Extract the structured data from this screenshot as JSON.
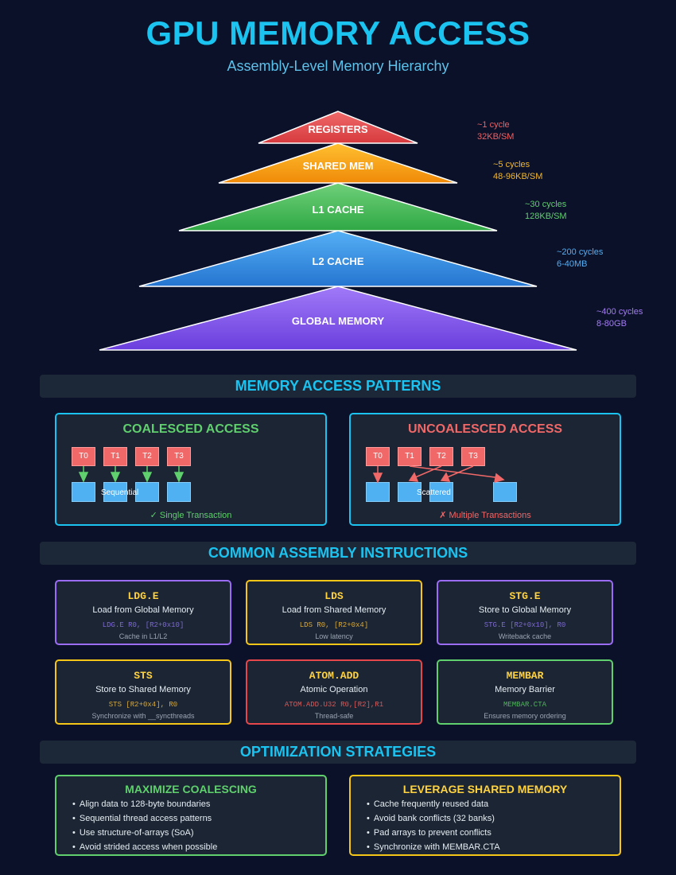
{
  "header": {
    "title": "GPU MEMORY ACCESS",
    "subtitle": "Assembly-Level Memory Hierarchy"
  },
  "hierarchy": [
    {
      "name": "REGISTERS",
      "latency": "~1 cycle",
      "size": "32KB/SM",
      "color": "#e5474b",
      "label_color": "#f06062"
    },
    {
      "name": "SHARED MEM",
      "latency": "~5 cycles",
      "size": "48-96KB/SM",
      "color": "#f5a010",
      "label_color": "#f5b82a"
    },
    {
      "name": "L1 CACHE",
      "latency": "~30 cycles",
      "size": "128KB/SM",
      "color": "#3fb552",
      "label_color": "#5fd06d"
    },
    {
      "name": "L2 CACHE",
      "latency": "~200 cycles",
      "size": "6-40MB",
      "color": "#2f8be0",
      "label_color": "#55aef5"
    },
    {
      "name": "GLOBAL MEMORY",
      "latency": "~400 cycles",
      "size": "8-80GB",
      "color": "#7a4ee6",
      "label_color": "#a37cf5"
    }
  ],
  "sections": {
    "patterns": "MEMORY ACCESS PATTERNS",
    "instructions": "COMMON ASSEMBLY INSTRUCTIONS",
    "optimization": "OPTIMIZATION STRATEGIES"
  },
  "patterns": {
    "coalesced": {
      "title": "COALESCED ACCESS",
      "threads": [
        "T0",
        "T1",
        "T2",
        "T3"
      ],
      "label": "Sequential",
      "result": "✓ Single Transaction",
      "color": "#5fd06d"
    },
    "uncoalesced": {
      "title": "UNCOALESCED ACCESS",
      "threads": [
        "T0",
        "T1",
        "T2",
        "T3"
      ],
      "label": "Scattered",
      "result": "✗ Multiple Transactions",
      "color": "#f06868"
    }
  },
  "instructions": [
    {
      "name": "LDG.E",
      "desc": "Load from Global Memory",
      "code": "LDG.E R0, [R2+0x10]",
      "note": "Cache in L1/L2",
      "border": "#9b6cf5",
      "code_color": "#7d6ad0"
    },
    {
      "name": "LDS",
      "desc": "Load from Shared Memory",
      "code": "LDS R0, [R2+0x4]",
      "note": "Low latency",
      "border": "#f5c518",
      "code_color": "#d6a83c"
    },
    {
      "name": "STG.E",
      "desc": "Store to Global Memory",
      "code": "STG.E [R2+0x10], R0",
      "note": "Writeback cache",
      "border": "#9b6cf5",
      "code_color": "#7d6ad0"
    },
    {
      "name": "STS",
      "desc": "Store to Shared Memory",
      "code": "STS [R2+0x4], R0",
      "note": "Synchronize with __syncthreads",
      "border": "#f5c518",
      "code_color": "#d6a83c"
    },
    {
      "name": "ATOM.ADD",
      "desc": "Atomic Operation",
      "code": "ATOM.ADD.U32 R0,[R2],R1",
      "note": "Thread-safe",
      "border": "#e5474b",
      "code_color": "#d65a5a"
    },
    {
      "name": "MEMBAR",
      "desc": "Memory Barrier",
      "code": "MEMBAR.CTA",
      "note": "Ensures memory ordering",
      "border": "#5fd06d",
      "code_color": "#4fb35a"
    }
  ],
  "strategies": [
    {
      "title": "MAXIMIZE COALESCING",
      "color": "#5fd06d",
      "items": [
        "Align data to 128-byte boundaries",
        "Sequential thread access patterns",
        "Use structure-of-arrays (SoA)",
        "Avoid strided access when possible"
      ]
    },
    {
      "title": "LEVERAGE SHARED MEMORY",
      "color": "#ffd23f",
      "items": [
        "Cache frequently reused data",
        "Avoid bank conflicts (32 banks)",
        "Pad arrays to prevent conflicts",
        "Synchronize with MEMBAR.CTA"
      ]
    }
  ]
}
